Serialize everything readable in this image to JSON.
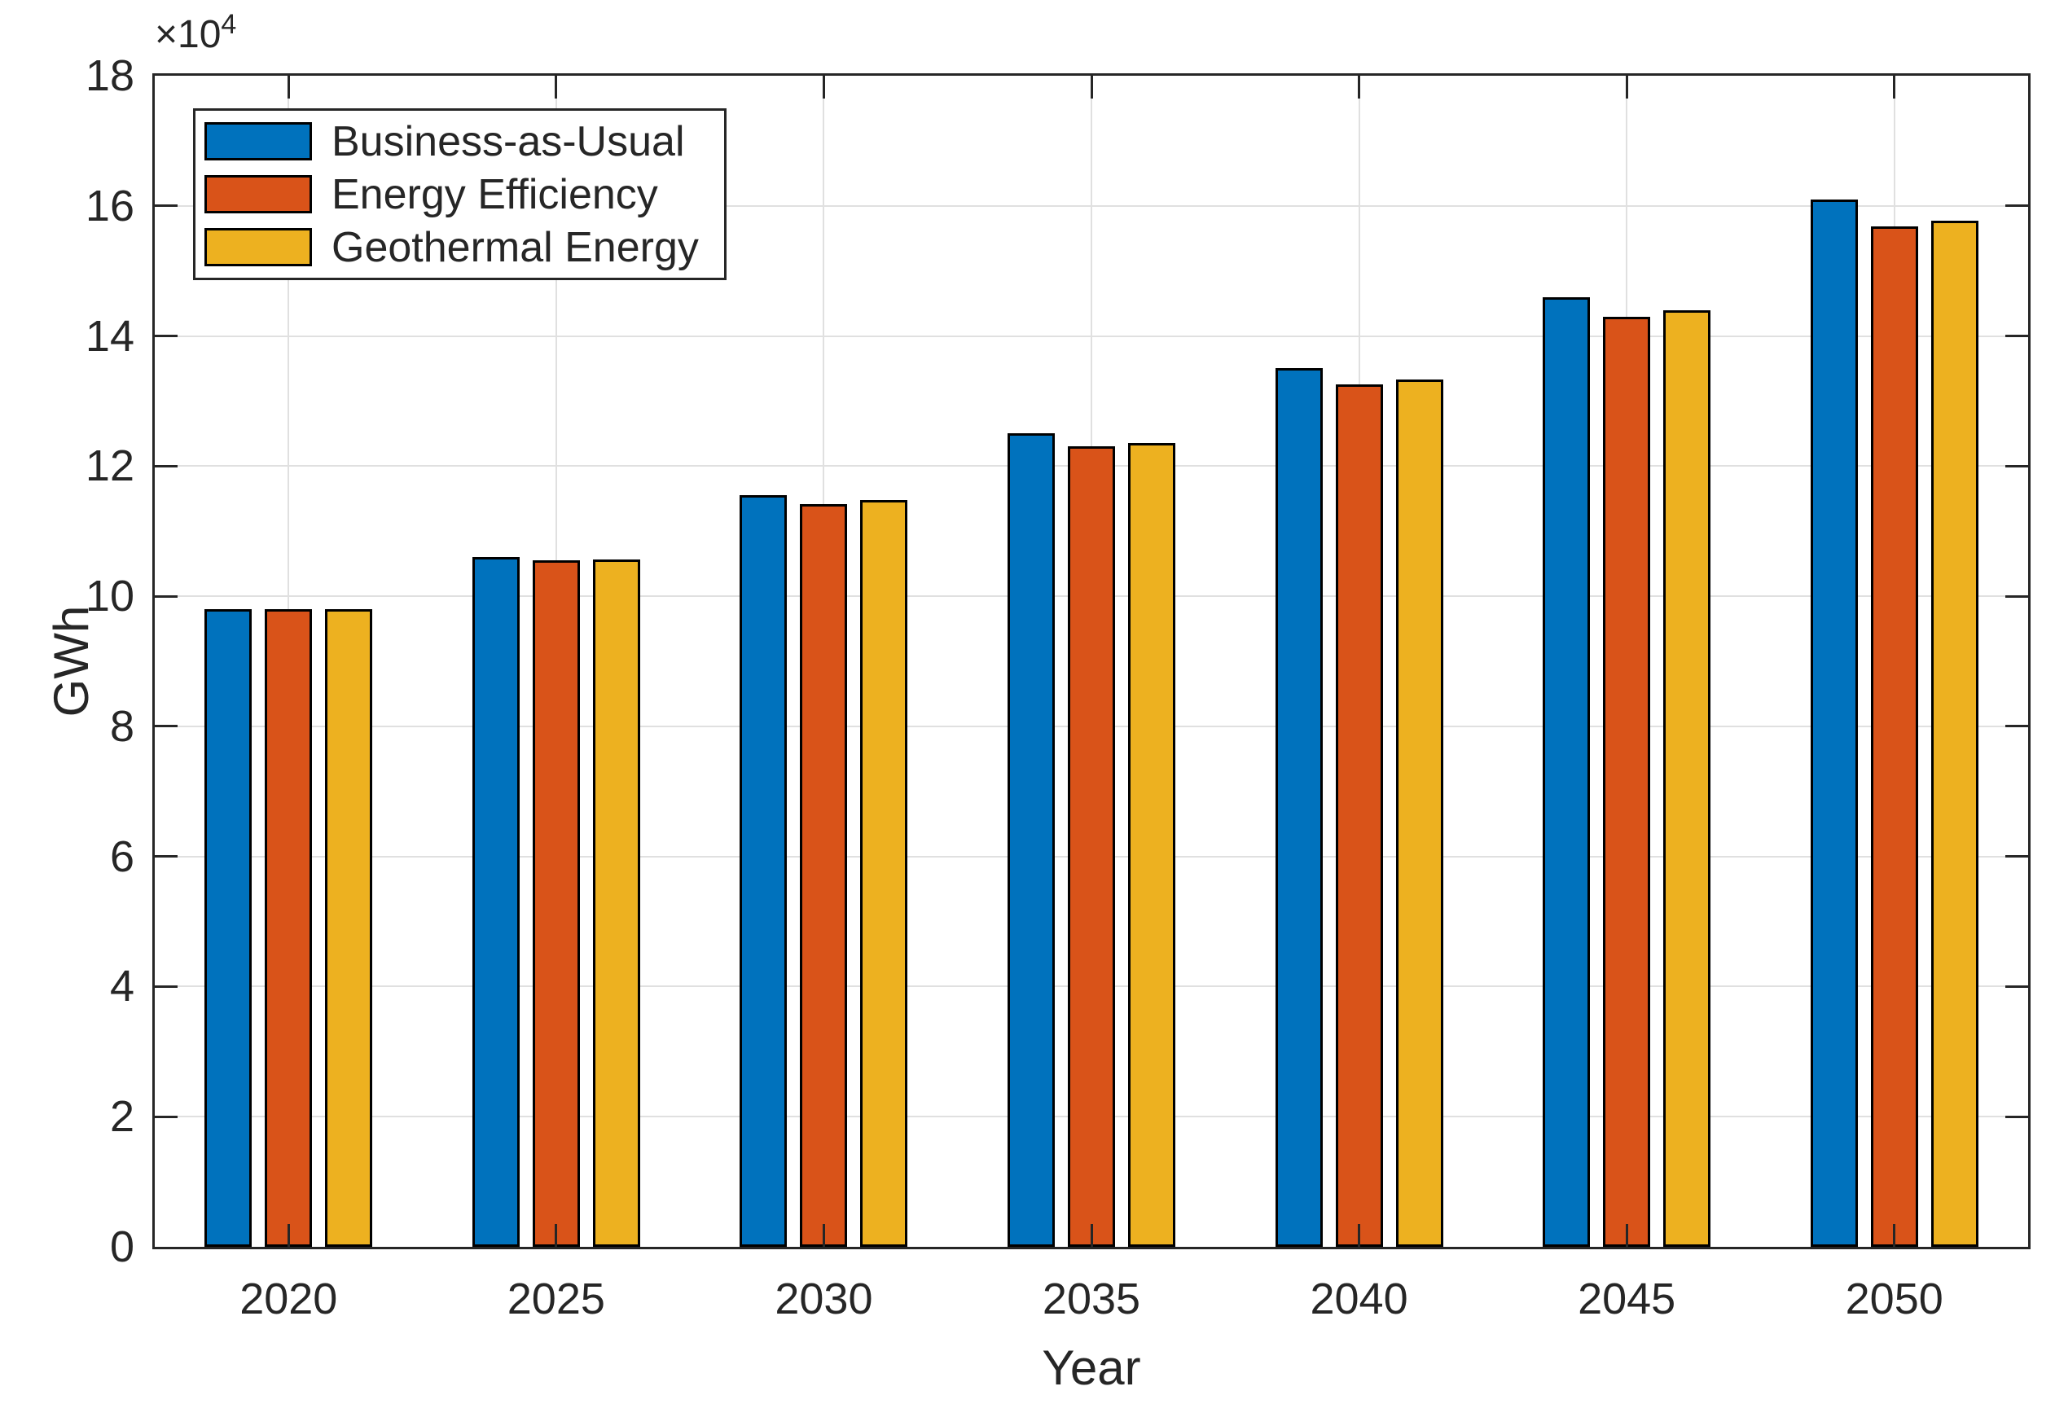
{
  "figure": {
    "background": "#ffffff",
    "axis_color": "#262626",
    "grid_color": "#e0e0e0",
    "bar_edge_color": "#000000"
  },
  "chart_data": {
    "type": "bar",
    "title": "",
    "xlabel": "Year",
    "ylabel": "GWh",
    "y_exponent_base": "×10",
    "y_exponent_power": "4",
    "values_unit": "GWh × 10⁴",
    "categories": [
      "2020",
      "2025",
      "2030",
      "2035",
      "2040",
      "2045",
      "2050"
    ],
    "series": [
      {
        "name": "Business-as-Usual",
        "color": "#0072BD",
        "values": [
          9.8,
          10.6,
          11.55,
          12.5,
          13.5,
          14.6,
          16.1
        ]
      },
      {
        "name": "Energy Efficiency",
        "color": "#D95319",
        "values": [
          9.8,
          10.55,
          11.42,
          12.3,
          13.25,
          14.3,
          15.68
        ]
      },
      {
        "name": "Geothermal Energy",
        "color": "#EDB120",
        "values": [
          9.8,
          10.57,
          11.48,
          12.36,
          13.33,
          14.4,
          15.77
        ]
      }
    ],
    "ylim": [
      0,
      18
    ],
    "yticks": [
      0,
      2,
      4,
      6,
      8,
      10,
      12,
      14,
      16,
      18
    ],
    "grid": true,
    "box": true,
    "tick_direction": "in",
    "legend_position": "top-left"
  }
}
